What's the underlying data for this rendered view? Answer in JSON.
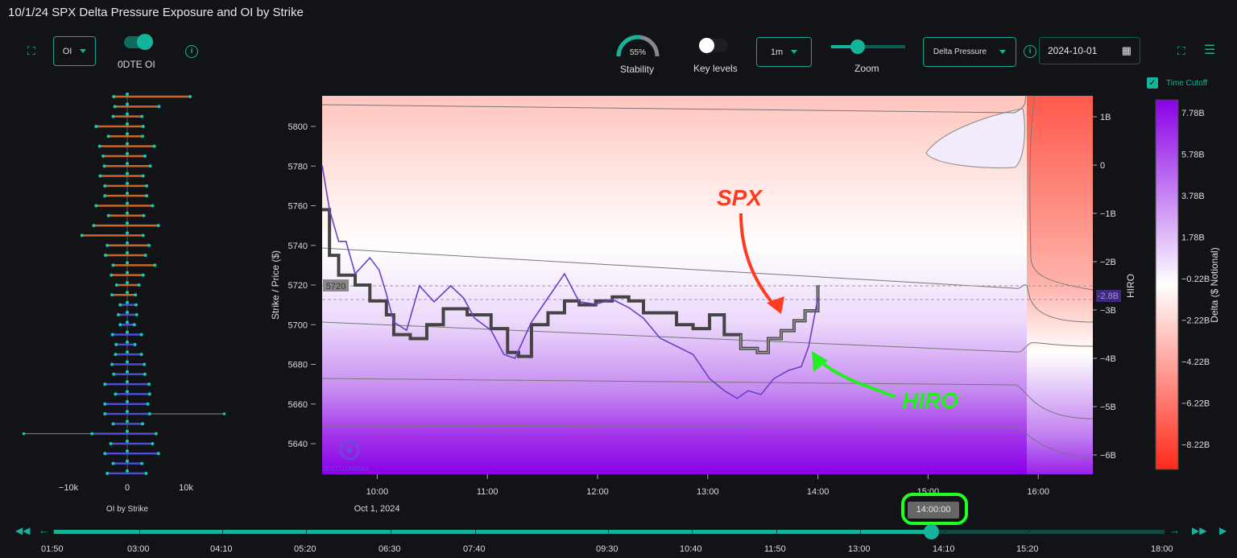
{
  "title": "10/1/24 SPX Delta Pressure Exposure and OI by Strike",
  "left_toolbar": {
    "oi_select": "OI",
    "toggle_label": "0DTE OI",
    "toggle_on": true
  },
  "toolbar": {
    "stability_value": "55%",
    "stability_fraction": 0.55,
    "stability_label": "Stability",
    "key_levels_label": "Key levels",
    "key_levels_on": false,
    "interval": "1m",
    "zoom_label": "Zoom",
    "zoom_level": 0.4,
    "mode": "Delta Pressure",
    "date": "2024-10-01",
    "time_cutoff_label": "Time Cutoff",
    "time_cutoff_checked": true
  },
  "colors": {
    "accent": "#14b39a",
    "spx": "#555555",
    "hiro": "#6a3fc9",
    "oi_call": "#c8672a",
    "oi_put": "#4a4fd0",
    "highlight": "#22ff22",
    "annot_spx": "#ff3b1f",
    "annot_hiro": "#22ee22"
  },
  "annotations": {
    "spx": "SPX",
    "hiro": "HIRO"
  },
  "oi_chart": {
    "xlabel": "OI by Strike",
    "ticks": [
      "−10k",
      "0",
      "10k"
    ],
    "tick_values": [
      -10,
      0,
      10
    ],
    "rows": [
      [
        5815,
        -2.3,
        10.7,
        0
      ],
      [
        5810,
        -2.1,
        5.4,
        0
      ],
      [
        5805,
        -2.4,
        2.5,
        0
      ],
      [
        5800,
        -5.3,
        2.7,
        0
      ],
      [
        5795,
        -3.2,
        2.6,
        0
      ],
      [
        5790,
        -4.7,
        4.6,
        0
      ],
      [
        5785,
        -4.1,
        3.0,
        0
      ],
      [
        5780,
        -3.9,
        3.9,
        0
      ],
      [
        5775,
        -4.6,
        2.7,
        0
      ],
      [
        5770,
        -3.8,
        3.3,
        0
      ],
      [
        5765,
        -3.8,
        3.3,
        0
      ],
      [
        5760,
        -5.3,
        4.3,
        0
      ],
      [
        5755,
        -3.2,
        2.8,
        0
      ],
      [
        5750,
        -5.7,
        5.3,
        0
      ],
      [
        5745,
        -7.7,
        2.7,
        0
      ],
      [
        5740,
        -3.4,
        3.7,
        0
      ],
      [
        5735,
        -3.7,
        3.1,
        0
      ],
      [
        5730,
        -2.4,
        4.7,
        0
      ],
      [
        5725,
        -2.7,
        2.7,
        0
      ],
      [
        5720,
        -1.8,
        2.0,
        0
      ],
      [
        5715,
        -2.6,
        1.4,
        0
      ],
      [
        5710,
        -1.2,
        1.5,
        1
      ],
      [
        5705,
        -1.5,
        1.6,
        1
      ],
      [
        5700,
        -1.2,
        1.2,
        1
      ],
      [
        5695,
        -2.5,
        2.4,
        1
      ],
      [
        5690,
        -1.9,
        1.3,
        1
      ],
      [
        5685,
        -2.0,
        2.4,
        1
      ],
      [
        5680,
        -2.6,
        2.9,
        1
      ],
      [
        5675,
        -2.3,
        3.0,
        1
      ],
      [
        5670,
        -3.8,
        3.7,
        1
      ],
      [
        5665,
        -2.0,
        3.8,
        1
      ],
      [
        5660,
        -3.8,
        3.5,
        1
      ],
      [
        5655,
        -3.8,
        3.8,
        1
      ],
      [
        5650,
        -2.4,
        2.6,
        1
      ],
      [
        5645,
        -6.0,
        4.9,
        1
      ],
      [
        5640,
        -2.8,
        4.3,
        1
      ],
      [
        5635,
        -3.8,
        5.3,
        1
      ],
      [
        5630,
        -2.4,
        2.5,
        1
      ],
      [
        5625,
        -3.4,
        3.2,
        1
      ]
    ],
    "extensions": [
      [
        5655,
        16.5
      ],
      [
        5645,
        -17.6
      ]
    ]
  },
  "main_chart": {
    "type": "line",
    "ylabel": "Strike / Price ($)",
    "y_ticks": [
      5800,
      5780,
      5760,
      5740,
      5720,
      5700,
      5680,
      5660,
      5640
    ],
    "ylim": [
      5624.6,
      5815.4
    ],
    "x_ticks": [
      "10:00",
      "11:00",
      "12:00",
      "13:00",
      "14:00",
      "15:00",
      "16:00"
    ],
    "x_date": "Oct 1, 2024",
    "xlim": [
      "09:30",
      "16:30"
    ],
    "current_price_label": "5720",
    "hiro_axis_label": "HIRO",
    "hiro_ticks": [
      "1B",
      "0",
      "−1B",
      "−2B",
      "−3B",
      "−4B",
      "−5B",
      "−6B"
    ],
    "hiro_tick_values": [
      1,
      0,
      -1,
      -2,
      -3,
      -4,
      -5,
      -6
    ],
    "hiro_current": "-2.8B",
    "spx": [
      [
        "09:30",
        5758
      ],
      [
        "09:34",
        5735
      ],
      [
        "09:39",
        5725
      ],
      [
        "09:48",
        5720
      ],
      [
        "09:56",
        5712
      ],
      [
        "10:05",
        5705
      ],
      [
        "10:09",
        5695
      ],
      [
        "10:18",
        5693
      ],
      [
        "10:27",
        5700
      ],
      [
        "10:36",
        5708
      ],
      [
        "10:49",
        5705
      ],
      [
        "11:02",
        5698
      ],
      [
        "11:11",
        5686
      ],
      [
        "11:17",
        5684
      ],
      [
        "11:24",
        5700
      ],
      [
        "11:33",
        5706
      ],
      [
        "11:42",
        5712
      ],
      [
        "11:50",
        5710
      ],
      [
        "11:59",
        5712
      ],
      [
        "12:08",
        5714
      ],
      [
        "12:17",
        5712
      ],
      [
        "12:25",
        5706
      ],
      [
        "12:34",
        5706
      ],
      [
        "12:43",
        5700
      ],
      [
        "12:52",
        5698
      ],
      [
        "13:01",
        5705
      ],
      [
        "13:09",
        5695
      ],
      [
        "13:18",
        5688
      ],
      [
        "13:27",
        5686
      ],
      [
        "13:33",
        5693
      ],
      [
        "13:40",
        5697
      ],
      [
        "13:47",
        5702
      ],
      [
        "13:53",
        5707
      ],
      [
        "14:00",
        5720
      ]
    ],
    "hiro": [
      [
        "09:30",
        0
      ],
      [
        "09:34",
        -0.92
      ],
      [
        "09:39",
        -1.58
      ],
      [
        "09:43",
        -1.58
      ],
      [
        "09:48",
        -2.25
      ],
      [
        "09:56",
        -1.92
      ],
      [
        "10:01",
        -2.17
      ],
      [
        "10:05",
        -2.67
      ],
      [
        "10:09",
        -3.25
      ],
      [
        "10:16",
        -3.42
      ],
      [
        "10:23",
        -2.5
      ],
      [
        "10:31",
        -2.83
      ],
      [
        "10:40",
        -2.5
      ],
      [
        "10:47",
        -2.75
      ],
      [
        "10:53",
        -3.17
      ],
      [
        "11:02",
        -3.42
      ],
      [
        "11:09",
        -3.92
      ],
      [
        "11:15",
        -4.0
      ],
      [
        "11:24",
        -3.25
      ],
      [
        "11:33",
        -2.75
      ],
      [
        "11:42",
        -2.25
      ],
      [
        "11:50",
        -2.83
      ],
      [
        "11:59",
        -2.88
      ],
      [
        "12:08",
        -2.78
      ],
      [
        "12:17",
        -2.95
      ],
      [
        "12:25",
        -3.17
      ],
      [
        "12:34",
        -3.58
      ],
      [
        "12:43",
        -3.75
      ],
      [
        "12:52",
        -3.92
      ],
      [
        "13:01",
        -4.42
      ],
      [
        "13:09",
        -4.67
      ],
      [
        "13:16",
        -4.83
      ],
      [
        "13:22",
        -4.67
      ],
      [
        "13:29",
        -4.75
      ],
      [
        "13:36",
        -4.42
      ],
      [
        "13:44",
        -4.25
      ],
      [
        "13:51",
        -4.17
      ],
      [
        "13:55",
        -3.75
      ],
      [
        "14:00",
        -2.75
      ]
    ]
  },
  "colorbar": {
    "label": "Delta ($ Notional)",
    "ticks": [
      "7.78B",
      "5.78B",
      "3.78B",
      "1.78B",
      "−0.22B",
      "−2.22B",
      "−4.22B",
      "−6.22B",
      "−8.22B"
    ],
    "colors": [
      "#8a00e6",
      "#ffffff",
      "#ff2a1a"
    ]
  },
  "timeline": {
    "current": "14:00:00",
    "labels": [
      "01:50",
      "03:00",
      "04:10",
      "05:20",
      "06:30",
      "07:40",
      "09:30",
      "10:40",
      "11:50",
      "13:00",
      "14:10",
      "15:20",
      "18:00"
    ],
    "progress": 0.79
  }
}
